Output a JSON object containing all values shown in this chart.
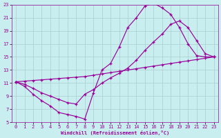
{
  "bg_color": "#c8eef0",
  "grid_color": "#aacccc",
  "line_color": "#990099",
  "xlabel": "Windchill (Refroidissement éolien,°C)",
  "xlim": [
    -0.5,
    23.5
  ],
  "ylim": [
    5,
    23
  ],
  "xticks": [
    0,
    1,
    2,
    3,
    4,
    5,
    6,
    7,
    8,
    9,
    10,
    11,
    12,
    13,
    14,
    15,
    16,
    17,
    18,
    19,
    20,
    21,
    22,
    23
  ],
  "yticks": [
    5,
    7,
    9,
    11,
    13,
    15,
    17,
    19,
    21,
    23
  ],
  "curve1_x": [
    0,
    1,
    2,
    3,
    4,
    5,
    6,
    7,
    8,
    9,
    10,
    11,
    12,
    13,
    14,
    15,
    16,
    17,
    18,
    19,
    20,
    21,
    22,
    23
  ],
  "curve1_y": [
    11.2,
    10.5,
    9.3,
    8.3,
    7.5,
    6.5,
    6.2,
    5.9,
    5.5,
    9.5,
    13.0,
    14.0,
    16.5,
    19.5,
    21.0,
    22.8,
    23.2,
    22.5,
    21.5,
    19.5,
    17.0,
    15.2,
    15.0,
    15.0
  ],
  "curve2_x": [
    0,
    1,
    2,
    3,
    4,
    5,
    6,
    7,
    8,
    9,
    10,
    11,
    12,
    13,
    14,
    15,
    16,
    17,
    18,
    19,
    20,
    21,
    22,
    23
  ],
  "curve2_y": [
    11.2,
    10.8,
    10.2,
    9.5,
    9.0,
    8.5,
    8.0,
    7.8,
    9.3,
    10.0,
    11.0,
    11.8,
    12.5,
    13.3,
    14.5,
    16.0,
    17.3,
    18.5,
    20.0,
    20.5,
    19.5,
    17.5,
    15.5,
    15.0
  ],
  "curve3_x": [
    0,
    1,
    2,
    3,
    4,
    5,
    6,
    7,
    8,
    9,
    10,
    11,
    12,
    13,
    14,
    15,
    16,
    17,
    18,
    19,
    20,
    21,
    22,
    23
  ],
  "curve3_y": [
    11.2,
    11.3,
    11.4,
    11.5,
    11.6,
    11.7,
    11.8,
    11.9,
    12.0,
    12.2,
    12.4,
    12.6,
    12.8,
    13.0,
    13.2,
    13.4,
    13.6,
    13.8,
    14.0,
    14.2,
    14.4,
    14.6,
    14.8,
    15.0
  ]
}
